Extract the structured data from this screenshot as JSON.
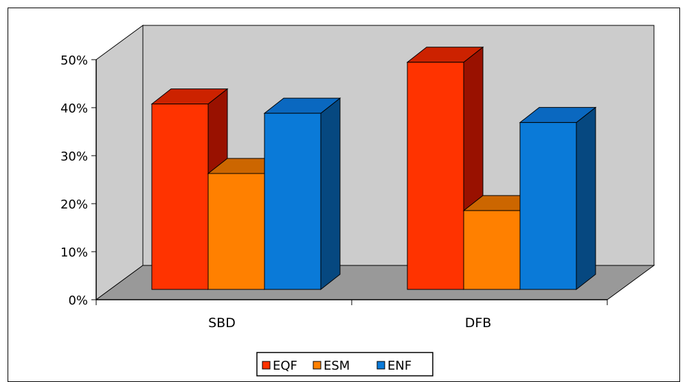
{
  "chart_data": {
    "type": "bar",
    "three_d": true,
    "categories": [
      "SBD",
      "DFB"
    ],
    "series": [
      {
        "name": "EQF",
        "values": [
          40,
          49
        ]
      },
      {
        "name": "ESM",
        "values": [
          25,
          17
        ]
      },
      {
        "name": "ENF",
        "values": [
          38,
          36
        ]
      }
    ],
    "y_ticks": [
      "0%",
      "10%",
      "20%",
      "30%",
      "40%",
      "50%"
    ],
    "ylim": [
      0,
      50
    ],
    "grid": false,
    "legend_position": "bottom",
    "title": "",
    "xlabel": "",
    "ylabel": ""
  },
  "colors": {
    "wall": "#cccccc",
    "floor": "#999999",
    "series_front": [
      "#ff3300",
      "#ff8000",
      "#0a7ad8"
    ],
    "series_top": [
      "#cc2200",
      "#cc6600",
      "#0a68c0"
    ],
    "series_side": [
      "#991100",
      "#cc6600",
      "#064880"
    ]
  }
}
